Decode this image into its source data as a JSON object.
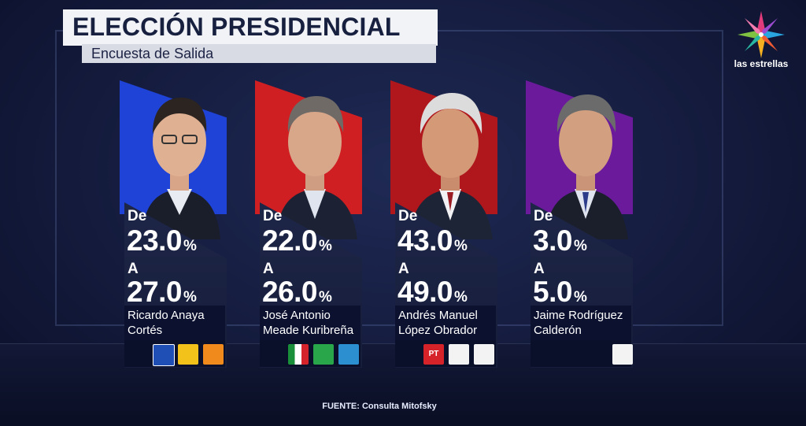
{
  "header": {
    "title": "ELECCIÓN PRESIDENCIAL",
    "subtitle": "Encuesta de Salida"
  },
  "network": {
    "logo_text": "las estrellas",
    "logo_icon": "star-burst-icon"
  },
  "candidates": [
    {
      "name_line1": "Ricardo Anaya",
      "name_line2": "Cortés",
      "from_label": "De",
      "from_value": "23.0",
      "to_label": "A",
      "to_value": "27.0",
      "percent_sign": "%",
      "color": "#1e43d6",
      "party_logos": [
        "pan-logo-icon",
        "prd-logo-icon",
        "mc-logo-icon"
      ]
    },
    {
      "name_line1": "José Antonio",
      "name_line2": "Meade Kuribreña",
      "from_label": "De",
      "from_value": "22.0",
      "to_label": "A",
      "to_value": "26.0",
      "percent_sign": "%",
      "color": "#cf1f22",
      "party_logos": [
        "pri-logo-icon",
        "pvem-logo-icon",
        "panal-logo-icon"
      ]
    },
    {
      "name_line1": "Andrés Manuel",
      "name_line2": "López Obrador",
      "from_label": "De",
      "from_value": "43.0",
      "to_label": "A",
      "to_value": "49.0",
      "percent_sign": "%",
      "color": "#b0171c",
      "party_logos": [
        "pt-logo-icon",
        "morena-logo-icon",
        "pes-logo-icon"
      ]
    },
    {
      "name_line1": "Jaime Rodríguez",
      "name_line2": "Calderón",
      "from_label": "De",
      "from_value": "3.0",
      "to_label": "A",
      "to_value": "5.0",
      "percent_sign": "%",
      "color": "#6a1a9a",
      "party_logos": [
        "independent-logo-icon"
      ]
    }
  ],
  "footer": {
    "source": "FUENTE: Consulta Mitofsky"
  }
}
